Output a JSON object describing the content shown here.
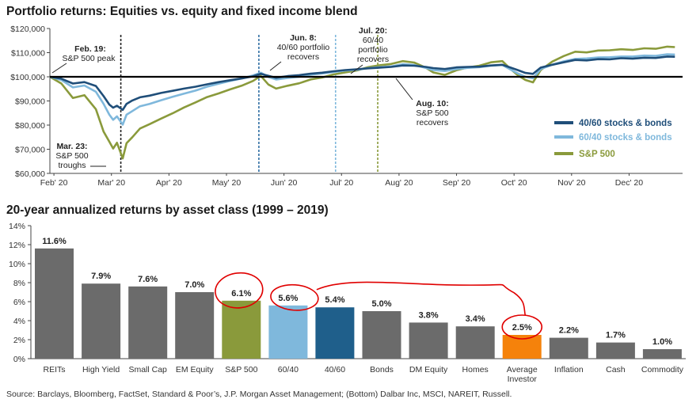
{
  "top_title": "Portfolio returns: Equities vs. equity and fixed income blend",
  "bottom_title": "20-year annualized returns by asset class (1999 – 2019)",
  "source": "Source: Barclays, Bloomberg, FactSet, Standard & Poor’s, J.P. Morgan Asset Management; (Bottom) Dalbar Inc, MSCI, NAREIT, Russell.",
  "chart_data": [
    {
      "type": "line",
      "title": "Portfolio returns: Equities vs. equity and fixed income blend",
      "ylim": [
        60000,
        120000
      ],
      "y_ticks": [
        {
          "value": 60000,
          "label": "$60,000"
        },
        {
          "value": 70000,
          "label": "$70,000"
        },
        {
          "value": 80000,
          "label": "$80,000"
        },
        {
          "value": 90000,
          "label": "$90,000"
        },
        {
          "value": 100000,
          "label": "$100,000"
        },
        {
          "value": 110000,
          "label": "$110,000"
        },
        {
          "value": 120000,
          "label": "$120,000"
        }
      ],
      "x_ticks": [
        "Feb' 20",
        "Mar' 20",
        "Apr' 20",
        "May' 20",
        "Jun' 20",
        "Jul' 20",
        "Aug' 20",
        "Sep' 20",
        "Oct' 20",
        "Nov' 20",
        "Dec' 20"
      ],
      "x_range_days": [
        0,
        330
      ],
      "baseline": 100000,
      "series": [
        {
          "name": "40/60 stocks & bonds",
          "color": "#1f4e79",
          "points": [
            [
              0,
              100000
            ],
            [
              6,
              99200
            ],
            [
              12,
              97200
            ],
            [
              18,
              97800
            ],
            [
              24,
              96200
            ],
            [
              28,
              92000
            ],
            [
              31,
              88500
            ],
            [
              33,
              87200
            ],
            [
              35,
              88000
            ],
            [
              38,
              86300
            ],
            [
              40,
              88800
            ],
            [
              43,
              90200
            ],
            [
              47,
              91500
            ],
            [
              52,
              92200
            ],
            [
              58,
              93300
            ],
            [
              64,
              94200
            ],
            [
              70,
              95100
            ],
            [
              76,
              95900
            ],
            [
              82,
              96900
            ],
            [
              88,
              97800
            ],
            [
              94,
              98600
            ],
            [
              100,
              99300
            ],
            [
              106,
              100200
            ],
            [
              110,
              101200
            ],
            [
              114,
              100400
            ],
            [
              118,
              99600
            ],
            [
              124,
              100300
            ],
            [
              130,
              100700
            ],
            [
              136,
              101300
            ],
            [
              142,
              101700
            ],
            [
              148,
              102300
            ],
            [
              154,
              102800
            ],
            [
              160,
              103100
            ],
            [
              166,
              103500
            ],
            [
              172,
              103800
            ],
            [
              178,
              104100
            ],
            [
              184,
              104700
            ],
            [
              190,
              104600
            ],
            [
              196,
              104100
            ],
            [
              200,
              103600
            ],
            [
              206,
              103200
            ],
            [
              212,
              103900
            ],
            [
              218,
              104100
            ],
            [
              224,
              104200
            ],
            [
              230,
              104700
            ],
            [
              236,
              105000
            ],
            [
              240,
              103900
            ],
            [
              244,
              102800
            ],
            [
              248,
              101600
            ],
            [
              252,
              101200
            ],
            [
              256,
              103800
            ],
            [
              262,
              105000
            ],
            [
              268,
              106000
            ],
            [
              274,
              107000
            ],
            [
              280,
              106800
            ],
            [
              286,
              107300
            ],
            [
              292,
              107200
            ],
            [
              298,
              107700
            ],
            [
              304,
              107500
            ],
            [
              310,
              107900
            ],
            [
              316,
              107800
            ],
            [
              322,
              108400
            ],
            [
              326,
              108300
            ]
          ]
        },
        {
          "name": "60/40 stocks & bonds",
          "color": "#7fb8dc",
          "points": [
            [
              0,
              100000
            ],
            [
              6,
              98700
            ],
            [
              12,
              95600
            ],
            [
              18,
              96400
            ],
            [
              24,
              93800
            ],
            [
              28,
              88800
            ],
            [
              31,
              84300
            ],
            [
              33,
              82200
            ],
            [
              35,
              83600
            ],
            [
              38,
              80200
            ],
            [
              40,
              84300
            ],
            [
              43,
              85800
            ],
            [
              47,
              87800
            ],
            [
              52,
              88800
            ],
            [
              58,
              90300
            ],
            [
              64,
              91700
            ],
            [
              70,
              93000
            ],
            [
              76,
              94300
            ],
            [
              82,
              95900
            ],
            [
              88,
              97100
            ],
            [
              94,
              98300
            ],
            [
              100,
              99300
            ],
            [
              106,
              100600
            ],
            [
              110,
              101700
            ],
            [
              114,
              99900
            ],
            [
              118,
              98900
            ],
            [
              124,
              99500
            ],
            [
              130,
              100000
            ],
            [
              136,
              100900
            ],
            [
              142,
              101400
            ],
            [
              148,
              102000
            ],
            [
              154,
              102600
            ],
            [
              160,
              102900
            ],
            [
              166,
              103600
            ],
            [
              172,
              104000
            ],
            [
              178,
              104300
            ],
            [
              184,
              105200
            ],
            [
              190,
              104900
            ],
            [
              196,
              103700
            ],
            [
              200,
              102800
            ],
            [
              206,
              102400
            ],
            [
              212,
              103200
            ],
            [
              218,
              103700
            ],
            [
              224,
              104000
            ],
            [
              230,
              104600
            ],
            [
              236,
              104900
            ],
            [
              240,
              103100
            ],
            [
              244,
              101400
            ],
            [
              248,
              100000
            ],
            [
              252,
              99400
            ],
            [
              256,
              103200
            ],
            [
              262,
              105000
            ],
            [
              268,
              106400
            ],
            [
              274,
              107400
            ],
            [
              280,
              107600
            ],
            [
              286,
              108000
            ],
            [
              292,
              108100
            ],
            [
              298,
              108400
            ],
            [
              304,
              108400
            ],
            [
              310,
              108800
            ],
            [
              316,
              108700
            ],
            [
              322,
              109300
            ],
            [
              326,
              109200
            ]
          ]
        },
        {
          "name": "S&P 500",
          "color": "#8a9a3b",
          "points": [
            [
              0,
              100000
            ],
            [
              6,
              97200
            ],
            [
              12,
              91200
            ],
            [
              18,
              92400
            ],
            [
              24,
              86600
            ],
            [
              28,
              77300
            ],
            [
              31,
              73100
            ],
            [
              33,
              70300
            ],
            [
              35,
              72700
            ],
            [
              38,
              66200
            ],
            [
              40,
              72500
            ],
            [
              43,
              75000
            ],
            [
              47,
              78600
            ],
            [
              52,
              80400
            ],
            [
              58,
              82700
            ],
            [
              64,
              84900
            ],
            [
              70,
              87300
            ],
            [
              76,
              89400
            ],
            [
              82,
              91600
            ],
            [
              88,
              93100
            ],
            [
              94,
              94800
            ],
            [
              100,
              96300
            ],
            [
              106,
              98300
            ],
            [
              110,
              100400
            ],
            [
              114,
              96800
            ],
            [
              118,
              95100
            ],
            [
              124,
              96300
            ],
            [
              130,
              97300
            ],
            [
              136,
              98900
            ],
            [
              142,
              99700
            ],
            [
              148,
              101000
            ],
            [
              154,
              101800
            ],
            [
              160,
              102600
            ],
            [
              166,
              104000
            ],
            [
              172,
              104800
            ],
            [
              178,
              105300
            ],
            [
              184,
              106500
            ],
            [
              190,
              105900
            ],
            [
              196,
              103800
            ],
            [
              200,
              101800
            ],
            [
              206,
              100800
            ],
            [
              212,
              102700
            ],
            [
              218,
              103900
            ],
            [
              224,
              104600
            ],
            [
              230,
              106000
            ],
            [
              236,
              106500
            ],
            [
              240,
              103400
            ],
            [
              244,
              100700
            ],
            [
              248,
              98700
            ],
            [
              252,
              97700
            ],
            [
              256,
              102800
            ],
            [
              262,
              106300
            ],
            [
              268,
              108600
            ],
            [
              274,
              110400
            ],
            [
              280,
              110100
            ],
            [
              286,
              110900
            ],
            [
              292,
              111000
            ],
            [
              298,
              111400
            ],
            [
              304,
              111100
            ],
            [
              310,
              111800
            ],
            [
              316,
              111600
            ],
            [
              322,
              112500
            ],
            [
              326,
              112300
            ]
          ]
        }
      ],
      "legend_position": "bottom-right",
      "annotations": [
        {
          "title": "Feb. 19:",
          "lines": [
            "S&P 500 peak"
          ]
        },
        {
          "title": "Mar. 23:",
          "lines": [
            "S&P 500",
            "troughs"
          ]
        },
        {
          "title": "Jun. 8:",
          "lines": [
            "40/60 portfolio",
            "recovers"
          ]
        },
        {
          "title": "Jul. 20:",
          "lines": [
            "60/40",
            "portfolio",
            "recovers"
          ]
        },
        {
          "title": "Aug. 10:",
          "lines": [
            "S&P 500",
            "recovers"
          ]
        }
      ]
    },
    {
      "type": "bar",
      "title": "20-year annualized returns by asset class (1999 – 2019)",
      "ylim": [
        0,
        14
      ],
      "y_ticks": [
        "0%",
        "2%",
        "4%",
        "6%",
        "8%",
        "10%",
        "12%",
        "14%"
      ],
      "categories": [
        "REITs",
        "High Yield",
        "Small Cap",
        "EM Equity",
        "S&P 500",
        "60/40",
        "40/60",
        "Bonds",
        "DM Equity",
        "Homes",
        "Average Investor",
        "Inflation",
        "Cash",
        "Commodity"
      ],
      "category_lines": [
        [
          "REITs"
        ],
        [
          "High Yield"
        ],
        [
          "Small Cap"
        ],
        [
          "EM Equity"
        ],
        [
          "S&P 500"
        ],
        [
          "60/40"
        ],
        [
          "40/60"
        ],
        [
          "Bonds"
        ],
        [
          "DM Equity"
        ],
        [
          "Homes"
        ],
        [
          "Average",
          "Investor"
        ],
        [
          "Inflation"
        ],
        [
          "Cash"
        ],
        [
          "Commodity"
        ]
      ],
      "values": [
        11.6,
        7.9,
        7.6,
        7.0,
        6.1,
        5.6,
        5.4,
        5.0,
        3.8,
        3.4,
        2.5,
        2.2,
        1.7,
        1.0
      ],
      "value_labels": [
        "11.6%",
        "7.9%",
        "7.6%",
        "7.0%",
        "6.1%",
        "5.6%",
        "5.4%",
        "5.0%",
        "3.8%",
        "3.4%",
        "2.5%",
        "2.2%",
        "1.7%",
        "1.0%"
      ],
      "colors": [
        "#6b6b6b",
        "#6b6b6b",
        "#6b6b6b",
        "#6b6b6b",
        "#8a9a3b",
        "#7fb8dc",
        "#1f5f8b",
        "#6b6b6b",
        "#6b6b6b",
        "#6b6b6b",
        "#f5820b",
        "#6b6b6b",
        "#6b6b6b",
        "#6b6b6b"
      ],
      "highlight_color": "#e00000"
    }
  ]
}
